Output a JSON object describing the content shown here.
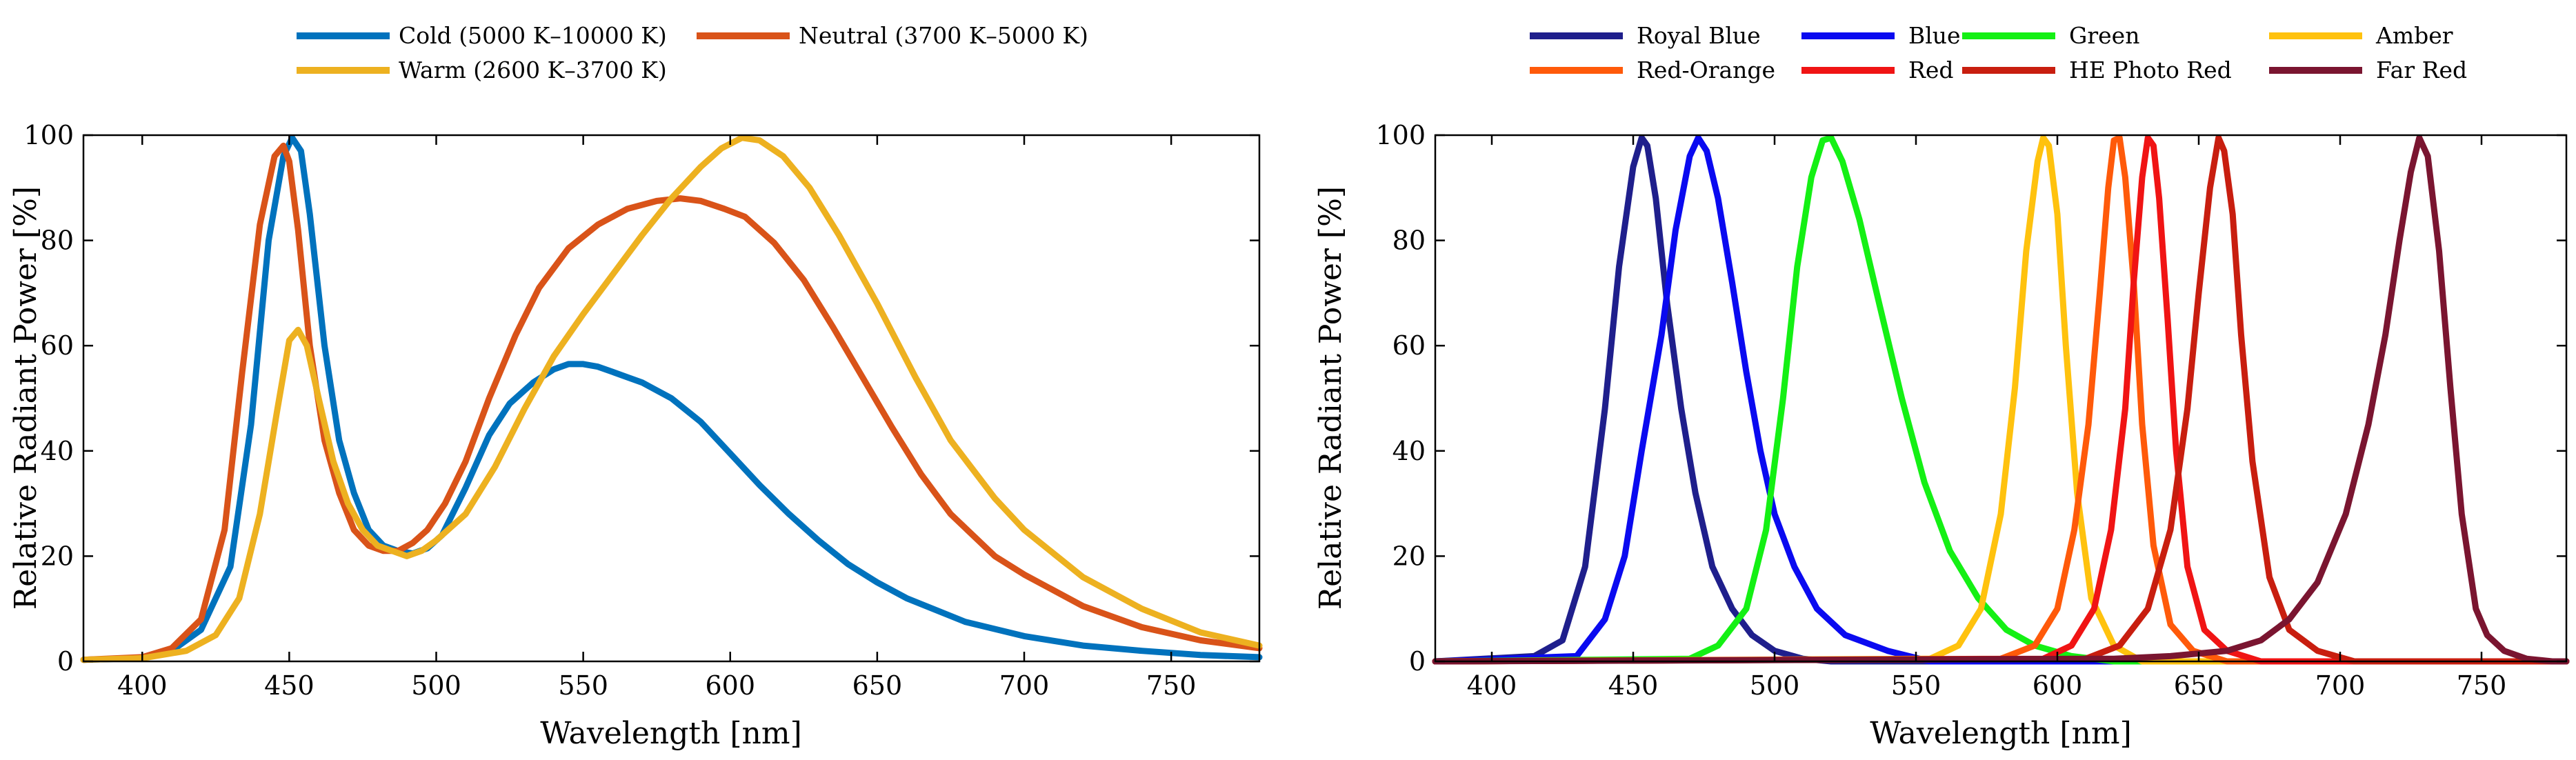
{
  "chart_data": [
    {
      "type": "line",
      "xlabel": "Wavelength [nm]",
      "ylabel": "Relative Radiant Power [%]",
      "xlim": [
        380,
        780
      ],
      "ylim": [
        0,
        100
      ],
      "xticks": [
        "400",
        "450",
        "500",
        "550",
        "600",
        "650",
        "700",
        "750"
      ],
      "yticks": [
        "0",
        "20",
        "40",
        "60",
        "80",
        "100"
      ],
      "grid": false,
      "legend_position": "top",
      "series": [
        {
          "name": "Cold (5000 K–10000 K)",
          "color": "#0072BD",
          "x": [
            380,
            400,
            410,
            420,
            430,
            437,
            443,
            448,
            451,
            454,
            457,
            462,
            467,
            472,
            477,
            482,
            487,
            492,
            497,
            502,
            510,
            518,
            525,
            533,
            540,
            545,
            550,
            555,
            560,
            565,
            570,
            575,
            580,
            590,
            600,
            610,
            620,
            630,
            640,
            650,
            660,
            680,
            700,
            720,
            740,
            760,
            780
          ],
          "values": [
            0.3,
            0.6,
            2,
            6,
            18,
            45,
            80,
            96,
            99.5,
            97,
            85,
            60,
            42,
            32,
            25,
            22,
            21,
            20.5,
            21.5,
            24,
            33,
            43,
            49,
            53,
            55.5,
            56.5,
            56.5,
            56,
            55,
            54,
            53,
            51.5,
            50,
            45.5,
            39.5,
            33.5,
            28,
            23,
            18.5,
            15,
            12,
            7.5,
            4.8,
            3,
            2,
            1.2,
            0.8
          ]
        },
        {
          "name": "Neutral (3700 K–5000 K)",
          "color": "#D95319",
          "x": [
            380,
            400,
            410,
            420,
            428,
            434,
            440,
            445,
            448,
            450,
            453,
            457,
            462,
            467,
            472,
            477,
            482,
            487,
            492,
            497,
            503,
            510,
            518,
            527,
            535,
            545,
            555,
            565,
            575,
            583,
            590,
            598,
            605,
            615,
            625,
            635,
            645,
            655,
            665,
            675,
            690,
            700,
            720,
            740,
            760,
            780
          ],
          "values": [
            0.3,
            0.8,
            2.5,
            8,
            25,
            55,
            83,
            96,
            98,
            95,
            82,
            60,
            42,
            32,
            25,
            22,
            21,
            21,
            22.5,
            25,
            30,
            38,
            50,
            62,
            71,
            78.5,
            83,
            86,
            87.5,
            88,
            87.5,
            86,
            84.5,
            79.5,
            72.5,
            63.5,
            54,
            44.5,
            35.5,
            28,
            20,
            16.5,
            10.5,
            6.5,
            4,
            2.5
          ]
        },
        {
          "name": "Warm (2600 K–3700 K)",
          "color": "#EDB120",
          "x": [
            380,
            400,
            415,
            425,
            433,
            440,
            446,
            450,
            453,
            456,
            460,
            465,
            470,
            475,
            480,
            485,
            490,
            495,
            500,
            510,
            520,
            530,
            540,
            550,
            560,
            570,
            580,
            590,
            597,
            604,
            610,
            618,
            627,
            637,
            650,
            663,
            675,
            690,
            700,
            720,
            740,
            760,
            780
          ],
          "values": [
            0.3,
            0.6,
            2,
            5,
            12,
            28,
            48,
            61,
            63,
            60,
            50,
            38,
            30,
            25,
            22,
            21,
            20,
            21,
            23,
            28,
            37,
            48,
            58,
            66,
            73.5,
            81,
            88,
            94,
            97.5,
            99.5,
            99,
            96,
            90,
            81,
            68,
            54,
            42,
            31,
            25,
            16,
            10,
            5.5,
            3
          ]
        }
      ]
    },
    {
      "type": "line",
      "xlabel": "Wavelength [nm]",
      "ylabel": "Relative Radiant Power [%]",
      "xlim": [
        380,
        780
      ],
      "ylim": [
        0,
        100
      ],
      "xticks": [
        "400",
        "450",
        "500",
        "550",
        "600",
        "650",
        "700",
        "750"
      ],
      "yticks": [
        "0",
        "20",
        "40",
        "60",
        "80",
        "100"
      ],
      "grid": false,
      "legend_position": "top",
      "series": [
        {
          "name": "Royal Blue",
          "color": "#1F1F8C",
          "x": [
            380,
            415,
            425,
            433,
            440,
            445,
            450,
            453,
            455,
            458,
            462,
            467,
            472,
            478,
            485,
            492,
            500,
            510,
            520,
            780
          ],
          "values": [
            0,
            1,
            4,
            18,
            48,
            75,
            94,
            99.5,
            98,
            88,
            68,
            48,
            32,
            18,
            10,
            5,
            2,
            0.5,
            0,
            0
          ]
        },
        {
          "name": "Blue",
          "color": "#0A0AF0",
          "x": [
            380,
            430,
            440,
            447,
            453,
            460,
            465,
            470,
            473,
            476,
            480,
            485,
            490,
            495,
            500,
            507,
            515,
            525,
            540,
            555,
            780
          ],
          "values": [
            0,
            1,
            8,
            20,
            40,
            62,
            82,
            96,
            99.5,
            97,
            88,
            72,
            55,
            40,
            28,
            18,
            10,
            5,
            2,
            0,
            0
          ]
        },
        {
          "name": "Green",
          "color": "#14F014",
          "x": [
            380,
            470,
            480,
            490,
            497,
            503,
            508,
            513,
            517,
            520,
            524,
            530,
            537,
            545,
            553,
            562,
            572,
            582,
            592,
            605,
            620,
            780
          ],
          "values": [
            0,
            0.5,
            3,
            10,
            25,
            50,
            75,
            92,
            99,
            99.5,
            95,
            84,
            68,
            50,
            34,
            21,
            12,
            6,
            3,
            1,
            0,
            0
          ]
        },
        {
          "name": "Amber",
          "color": "#FFC20E",
          "x": [
            380,
            555,
            565,
            573,
            580,
            585,
            589,
            593,
            595,
            597,
            600,
            603,
            607,
            612,
            620,
            630,
            780
          ],
          "values": [
            0,
            0.5,
            3,
            10,
            28,
            52,
            78,
            95,
            99.5,
            98,
            85,
            60,
            32,
            12,
            3,
            0,
            0
          ]
        },
        {
          "name": "Red-Orange",
          "color": "#FF5A0A",
          "x": [
            380,
            580,
            592,
            600,
            606,
            611,
            615,
            618,
            620,
            622,
            624,
            627,
            630,
            634,
            640,
            648,
            660,
            780
          ],
          "values": [
            0,
            0.5,
            3,
            10,
            25,
            45,
            70,
            90,
            99,
            99.5,
            92,
            72,
            45,
            22,
            7,
            2,
            0,
            0
          ]
        },
        {
          "name": "Red",
          "color": "#F01414",
          "x": [
            380,
            595,
            605,
            613,
            619,
            624,
            627,
            630,
            632,
            634,
            636,
            639,
            642,
            646,
            652,
            660,
            672,
            780
          ],
          "values": [
            0,
            0.5,
            3,
            10,
            25,
            48,
            72,
            92,
            99.5,
            98,
            88,
            65,
            40,
            18,
            6,
            2,
            0,
            0
          ]
        },
        {
          "name": "HE Photo Red",
          "color": "#C81E0F",
          "x": [
            380,
            610,
            622,
            632,
            640,
            646,
            650,
            654,
            657,
            659,
            662,
            665,
            669,
            675,
            682,
            692,
            705,
            780
          ],
          "values": [
            0,
            0.5,
            3,
            10,
            25,
            48,
            70,
            90,
            99.5,
            97,
            85,
            62,
            38,
            16,
            6,
            2,
            0,
            0
          ]
        },
        {
          "name": "Far Red",
          "color": "#7A1530",
          "x": [
            380,
            620,
            640,
            660,
            672,
            682,
            692,
            702,
            710,
            716,
            721,
            725,
            728,
            731,
            735,
            739,
            743,
            748,
            752,
            758,
            766,
            775,
            780
          ],
          "values": [
            0,
            0.5,
            1,
            2,
            4,
            8,
            15,
            28,
            45,
            62,
            80,
            93,
            99.5,
            96,
            78,
            52,
            28,
            10,
            5,
            2,
            0.5,
            0,
            0
          ]
        }
      ]
    }
  ]
}
